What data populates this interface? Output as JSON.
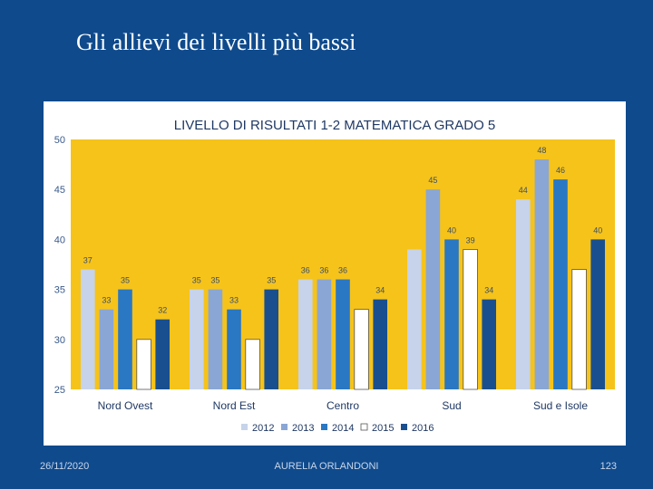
{
  "slide": {
    "title": "Gli allievi dei livelli più bassi",
    "footer_date": "26/11/2020",
    "footer_author": "AURELIA ORLANDONI",
    "footer_page": "123"
  },
  "chart_data": {
    "type": "bar",
    "title": "LIVELLO DI RISULTATI 1-2 MATEMATICA  GRADO 5",
    "categories": [
      "Nord Ovest",
      "Nord Est",
      "Centro",
      "Sud",
      "Sud e Isole"
    ],
    "series": [
      {
        "name": "2012",
        "color": "#c6d3ea",
        "values": [
          37,
          35,
          36,
          39,
          44
        ],
        "labels": [
          "37",
          "35",
          "36",
          "",
          "44"
        ]
      },
      {
        "name": "2013",
        "color": "#8aa6d4",
        "values": [
          33,
          35,
          36,
          45,
          48
        ],
        "labels": [
          "33",
          "35",
          "36",
          "45",
          "48"
        ]
      },
      {
        "name": "2014",
        "color": "#2a77c4",
        "values": [
          35,
          33,
          36,
          40,
          46
        ],
        "labels": [
          "35",
          "33",
          "36",
          "40",
          "46"
        ]
      },
      {
        "name": "2015",
        "color": "#ffffff",
        "values": [
          30,
          30,
          33,
          39,
          37
        ],
        "labels": [
          "",
          "",
          "",
          "39",
          ""
        ]
      },
      {
        "name": "2016",
        "color": "#1a4f8f",
        "values": [
          32,
          35,
          34,
          34,
          40
        ],
        "labels": [
          "32",
          "35",
          "34",
          "34",
          "40"
        ]
      }
    ],
    "yticks": [
      "25",
      "30",
      "35",
      "40",
      "45",
      "50"
    ],
    "ylim": [
      25,
      50
    ],
    "grid": false,
    "legend": "bottom",
    "background_color": "#f6c31a"
  }
}
